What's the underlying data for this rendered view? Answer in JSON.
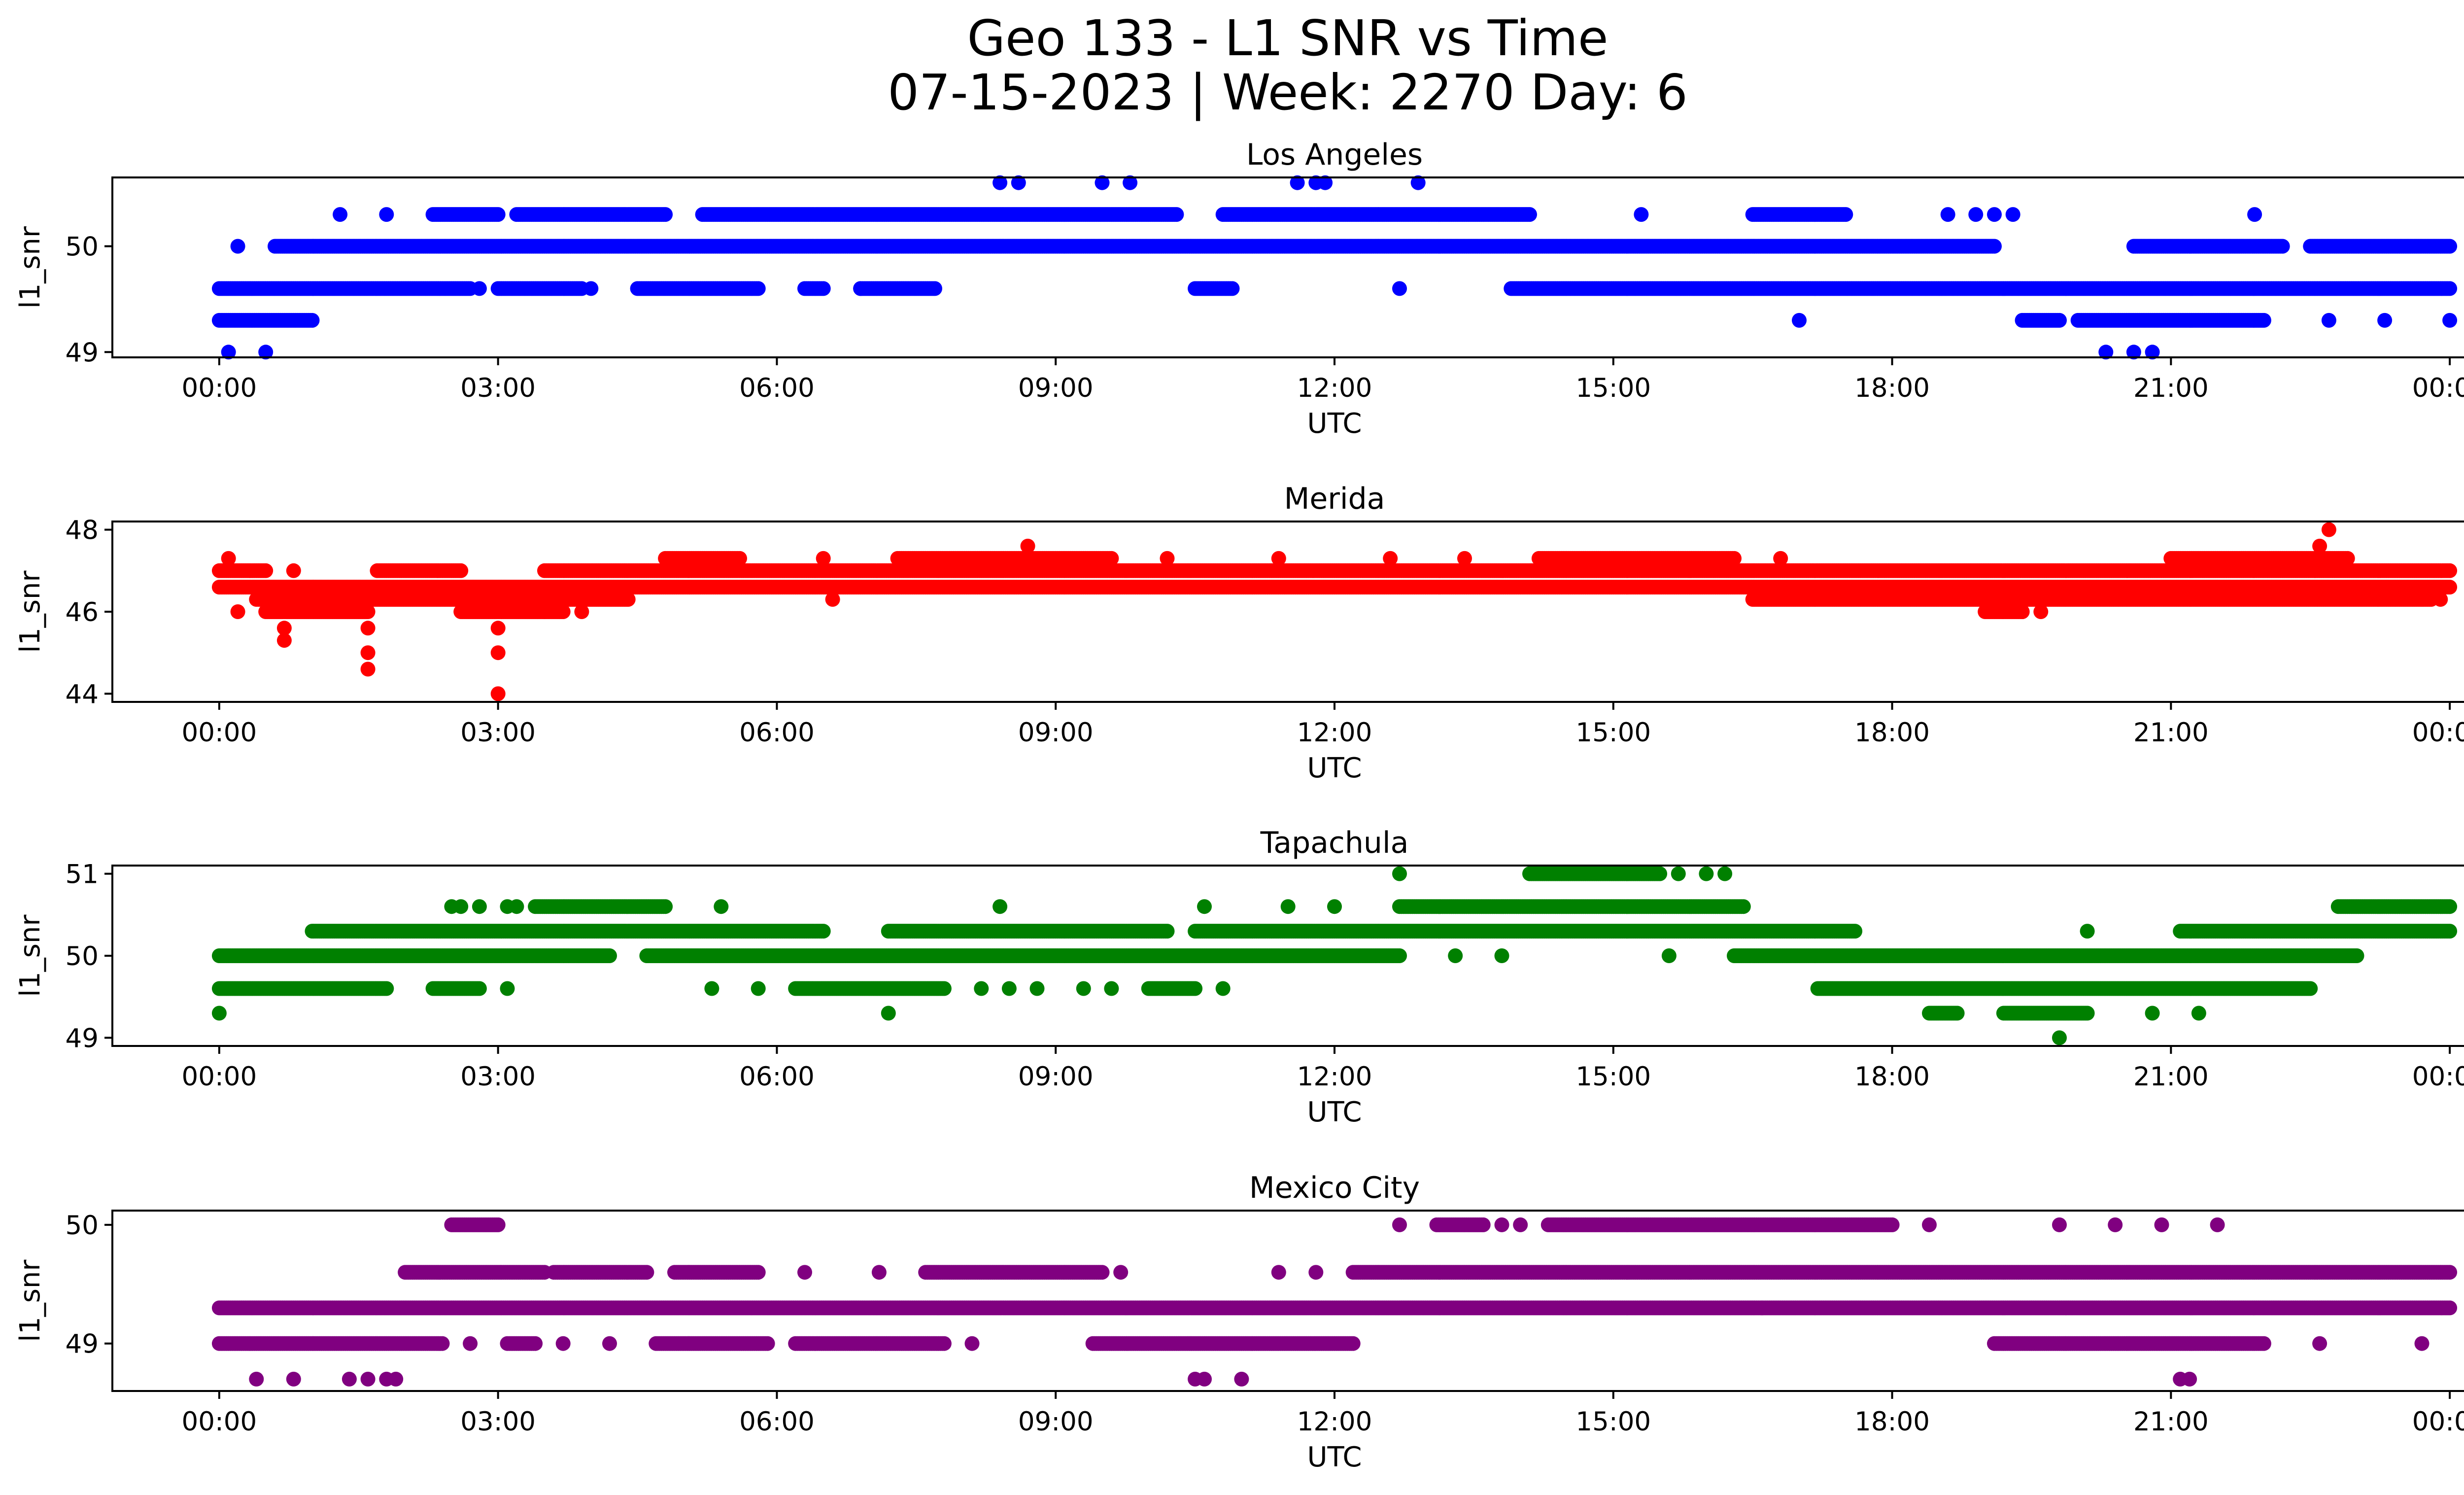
{
  "figure": {
    "title_line1": "Geo 133 - L1 SNR vs Time",
    "title_line2": "07-15-2023 | Week: 2270 Day: 6"
  },
  "chart_data": [
    {
      "type": "scatter",
      "title": "Los Angeles",
      "xlabel": "UTC",
      "ylabel": "l1_snr",
      "color": "#0000ff",
      "xlim_hours": [
        -1.15,
        25.15
      ],
      "ylim": [
        48.95,
        50.65
      ],
      "xticks_hours": [
        0,
        3,
        6,
        9,
        12,
        15,
        18,
        21,
        24
      ],
      "xtick_labels": [
        "00:00",
        "03:00",
        "06:00",
        "09:00",
        "12:00",
        "15:00",
        "18:00",
        "21:00",
        "00:00"
      ],
      "yticks": [
        49,
        50
      ],
      "ytick_labels": [
        "49",
        "50"
      ],
      "bands": [
        {
          "y": 50.0,
          "ranges": [
            [
              0.6,
              19.1
            ],
            [
              20.6,
              22.2
            ],
            [
              22.5,
              24.0
            ]
          ]
        },
        {
          "y": 49.6,
          "ranges": [
            [
              0.0,
              2.7
            ],
            [
              3.0,
              3.9
            ],
            [
              4.5,
              5.8
            ],
            [
              6.3,
              6.5
            ],
            [
              6.9,
              7.7
            ],
            [
              10.5,
              10.9
            ],
            [
              13.9,
              24.0
            ]
          ]
        },
        {
          "y": 49.3,
          "ranges": [
            [
              0.0,
              1.0
            ],
            [
              19.4,
              19.8
            ],
            [
              20.0,
              22.0
            ]
          ]
        },
        {
          "y": 50.3,
          "ranges": [
            [
              2.3,
              3.0
            ],
            [
              3.2,
              4.8
            ],
            [
              5.2,
              10.3
            ],
            [
              10.8,
              14.1
            ],
            [
              16.5,
              17.5
            ]
          ]
        }
      ],
      "points": [
        {
          "x": 0.1,
          "y": 49.0
        },
        {
          "x": 0.5,
          "y": 49.0
        },
        {
          "x": 0.2,
          "y": 50.0
        },
        {
          "x": 1.3,
          "y": 50.3
        },
        {
          "x": 1.8,
          "y": 50.3
        },
        {
          "x": 2.8,
          "y": 49.6
        },
        {
          "x": 4.0,
          "y": 49.6
        },
        {
          "x": 6.9,
          "y": 49.6
        },
        {
          "x": 8.4,
          "y": 50.6
        },
        {
          "x": 8.6,
          "y": 50.6
        },
        {
          "x": 9.5,
          "y": 50.6
        },
        {
          "x": 9.8,
          "y": 50.6
        },
        {
          "x": 11.6,
          "y": 50.6
        },
        {
          "x": 11.8,
          "y": 50.6
        },
        {
          "x": 11.9,
          "y": 50.6
        },
        {
          "x": 12.9,
          "y": 50.6
        },
        {
          "x": 12.7,
          "y": 49.6
        },
        {
          "x": 15.3,
          "y": 50.3
        },
        {
          "x": 17.0,
          "y": 49.3
        },
        {
          "x": 18.6,
          "y": 50.3
        },
        {
          "x": 18.9,
          "y": 50.3
        },
        {
          "x": 19.1,
          "y": 50.3
        },
        {
          "x": 19.3,
          "y": 50.3
        },
        {
          "x": 20.3,
          "y": 49.0
        },
        {
          "x": 20.6,
          "y": 49.0
        },
        {
          "x": 20.8,
          "y": 49.0
        },
        {
          "x": 21.9,
          "y": 50.3
        },
        {
          "x": 22.7,
          "y": 49.3
        },
        {
          "x": 23.3,
          "y": 49.3
        },
        {
          "x": 24.0,
          "y": 49.3
        }
      ]
    },
    {
      "type": "scatter",
      "title": "Merida",
      "xlabel": "UTC",
      "ylabel": "l1_snr",
      "color": "#ff0000",
      "xlim_hours": [
        -1.15,
        25.15
      ],
      "ylim": [
        43.8,
        48.2
      ],
      "xticks_hours": [
        0,
        3,
        6,
        9,
        12,
        15,
        18,
        21,
        24
      ],
      "xtick_labels": [
        "00:00",
        "03:00",
        "06:00",
        "09:00",
        "12:00",
        "15:00",
        "18:00",
        "21:00",
        "00:00"
      ],
      "yticks": [
        44,
        46,
        48
      ],
      "ytick_labels": [
        "44",
        "46",
        "48"
      ],
      "bands": [
        {
          "y": 47.0,
          "ranges": [
            [
              0.0,
              0.5
            ],
            [
              1.7,
              2.6
            ],
            [
              3.5,
              24.0
            ]
          ]
        },
        {
          "y": 46.6,
          "ranges": [
            [
              0.0,
              24.0
            ]
          ]
        },
        {
          "y": 46.3,
          "ranges": [
            [
              0.4,
              4.4
            ],
            [
              16.5,
              23.8
            ]
          ]
        },
        {
          "y": 46.0,
          "ranges": [
            [
              0.5,
              1.6
            ],
            [
              2.6,
              3.7
            ],
            [
              19.0,
              19.4
            ]
          ]
        },
        {
          "y": 47.3,
          "ranges": [
            [
              4.8,
              5.6
            ],
            [
              7.3,
              9.6
            ],
            [
              14.2,
              16.3
            ],
            [
              21.0,
              22.9
            ]
          ]
        }
      ],
      "points": [
        {
          "x": 0.1,
          "y": 47.3
        },
        {
          "x": 0.2,
          "y": 46.0
        },
        {
          "x": 0.8,
          "y": 47.0
        },
        {
          "x": 0.7,
          "y": 45.6
        },
        {
          "x": 0.7,
          "y": 45.3
        },
        {
          "x": 1.6,
          "y": 45.6
        },
        {
          "x": 1.6,
          "y": 45.0
        },
        {
          "x": 1.6,
          "y": 44.6
        },
        {
          "x": 3.0,
          "y": 45.6
        },
        {
          "x": 3.0,
          "y": 45.0
        },
        {
          "x": 3.0,
          "y": 44.0
        },
        {
          "x": 3.5,
          "y": 46.0
        },
        {
          "x": 3.9,
          "y": 46.0
        },
        {
          "x": 6.6,
          "y": 46.3
        },
        {
          "x": 6.5,
          "y": 47.3
        },
        {
          "x": 8.7,
          "y": 47.6
        },
        {
          "x": 10.2,
          "y": 47.3
        },
        {
          "x": 11.4,
          "y": 47.3
        },
        {
          "x": 12.6,
          "y": 47.3
        },
        {
          "x": 13.4,
          "y": 47.3
        },
        {
          "x": 16.8,
          "y": 47.3
        },
        {
          "x": 19.4,
          "y": 46.0
        },
        {
          "x": 19.6,
          "y": 46.0
        },
        {
          "x": 22.6,
          "y": 47.6
        },
        {
          "x": 22.7,
          "y": 48.0
        },
        {
          "x": 23.7,
          "y": 46.3
        },
        {
          "x": 23.9,
          "y": 46.3
        }
      ]
    },
    {
      "type": "scatter",
      "title": "Tapachula",
      "xlabel": "UTC",
      "ylabel": "l1_snr",
      "color": "#008000",
      "xlim_hours": [
        -1.15,
        25.15
      ],
      "ylim": [
        48.9,
        51.1
      ],
      "xticks_hours": [
        0,
        3,
        6,
        9,
        12,
        15,
        18,
        21,
        24
      ],
      "xtick_labels": [
        "00:00",
        "03:00",
        "06:00",
        "09:00",
        "12:00",
        "15:00",
        "18:00",
        "21:00",
        "00:00"
      ],
      "yticks": [
        49,
        50,
        51
      ],
      "ytick_labels": [
        "49",
        "50",
        "51"
      ],
      "bands": [
        {
          "y": 50.0,
          "ranges": [
            [
              0.0,
              4.2
            ],
            [
              4.6,
              12.7
            ],
            [
              16.3,
              23.0
            ]
          ]
        },
        {
          "y": 50.3,
          "ranges": [
            [
              1.0,
              6.5
            ],
            [
              7.2,
              10.2
            ],
            [
              10.5,
              17.6
            ],
            [
              21.1,
              24.0
            ]
          ]
        },
        {
          "y": 49.6,
          "ranges": [
            [
              0.0,
              1.8
            ],
            [
              2.3,
              2.8
            ],
            [
              6.2,
              7.8
            ],
            [
              10.0,
              10.5
            ],
            [
              17.2,
              22.5
            ]
          ]
        },
        {
          "y": 50.6,
          "ranges": [
            [
              3.4,
              4.8
            ],
            [
              12.7,
              16.4
            ],
            [
              22.8,
              24.0
            ]
          ]
        },
        {
          "y": 51.0,
          "ranges": [
            [
              14.1,
              15.5
            ]
          ]
        },
        {
          "y": 49.3,
          "ranges": [
            [
              18.4,
              18.7
            ],
            [
              19.2,
              20.1
            ]
          ]
        }
      ],
      "points": [
        {
          "x": 0.0,
          "y": 49.3
        },
        {
          "x": 2.5,
          "y": 50.6
        },
        {
          "x": 2.6,
          "y": 50.6
        },
        {
          "x": 2.8,
          "y": 50.6
        },
        {
          "x": 3.1,
          "y": 50.6
        },
        {
          "x": 3.2,
          "y": 50.6
        },
        {
          "x": 3.1,
          "y": 49.6
        },
        {
          "x": 5.4,
          "y": 50.6
        },
        {
          "x": 5.3,
          "y": 49.6
        },
        {
          "x": 5.8,
          "y": 49.6
        },
        {
          "x": 7.2,
          "y": 49.3
        },
        {
          "x": 8.4,
          "y": 50.6
        },
        {
          "x": 8.2,
          "y": 49.6
        },
        {
          "x": 8.5,
          "y": 49.6
        },
        {
          "x": 8.8,
          "y": 49.6
        },
        {
          "x": 9.3,
          "y": 49.6
        },
        {
          "x": 9.6,
          "y": 49.6
        },
        {
          "x": 10.6,
          "y": 50.6
        },
        {
          "x": 10.8,
          "y": 49.6
        },
        {
          "x": 11.5,
          "y": 50.6
        },
        {
          "x": 12.0,
          "y": 50.6
        },
        {
          "x": 12.7,
          "y": 51.0
        },
        {
          "x": 13.3,
          "y": 50.0
        },
        {
          "x": 13.8,
          "y": 50.0
        },
        {
          "x": 15.7,
          "y": 51.0
        },
        {
          "x": 16.0,
          "y": 51.0
        },
        {
          "x": 16.2,
          "y": 51.0
        },
        {
          "x": 15.6,
          "y": 50.0
        },
        {
          "x": 19.8,
          "y": 49.0
        },
        {
          "x": 20.1,
          "y": 50.3
        },
        {
          "x": 20.8,
          "y": 49.3
        },
        {
          "x": 21.3,
          "y": 49.3
        }
      ]
    },
    {
      "type": "scatter",
      "title": "Mexico City",
      "xlabel": "UTC",
      "ylabel": "l1_snr",
      "color": "#800080",
      "xlim_hours": [
        -1.15,
        25.15
      ],
      "ylim": [
        48.6,
        50.12
      ],
      "xticks_hours": [
        0,
        3,
        6,
        9,
        12,
        15,
        18,
        21,
        24
      ],
      "xtick_labels": [
        "00:00",
        "03:00",
        "06:00",
        "09:00",
        "12:00",
        "15:00",
        "18:00",
        "21:00",
        "00:00"
      ],
      "yticks": [
        49,
        50
      ],
      "ytick_labels": [
        "49",
        "50"
      ],
      "bands": [
        {
          "y": 49.3,
          "ranges": [
            [
              0.0,
              24.0
            ]
          ]
        },
        {
          "y": 49.0,
          "ranges": [
            [
              0.0,
              2.4
            ],
            [
              3.1,
              3.4
            ],
            [
              4.7,
              5.9
            ],
            [
              6.2,
              7.8
            ],
            [
              9.4,
              12.2
            ],
            [
              19.1,
              22.0
            ]
          ]
        },
        {
          "y": 49.6,
          "ranges": [
            [
              2.0,
              3.5
            ],
            [
              3.6,
              4.6
            ],
            [
              4.9,
              5.8
            ],
            [
              7.6,
              9.5
            ],
            [
              12.2,
              24.0
            ]
          ]
        },
        {
          "y": 50.0,
          "ranges": [
            [
              2.5,
              3.0
            ],
            [
              13.1,
              13.6
            ],
            [
              14.3,
              18.0
            ]
          ]
        }
      ],
      "points": [
        {
          "x": 0.4,
          "y": 48.7
        },
        {
          "x": 0.8,
          "y": 48.7
        },
        {
          "x": 1.4,
          "y": 48.7
        },
        {
          "x": 1.6,
          "y": 48.7
        },
        {
          "x": 1.8,
          "y": 48.7
        },
        {
          "x": 1.9,
          "y": 48.7
        },
        {
          "x": 2.7,
          "y": 49.0
        },
        {
          "x": 3.7,
          "y": 49.0
        },
        {
          "x": 4.2,
          "y": 49.0
        },
        {
          "x": 6.3,
          "y": 49.6
        },
        {
          "x": 7.1,
          "y": 49.6
        },
        {
          "x": 8.1,
          "y": 49.0
        },
        {
          "x": 9.7,
          "y": 49.6
        },
        {
          "x": 10.5,
          "y": 48.7
        },
        {
          "x": 10.6,
          "y": 48.7
        },
        {
          "x": 11.0,
          "y": 48.7
        },
        {
          "x": 11.4,
          "y": 49.6
        },
        {
          "x": 11.8,
          "y": 49.6
        },
        {
          "x": 12.7,
          "y": 50.0
        },
        {
          "x": 13.8,
          "y": 50.0
        },
        {
          "x": 14.0,
          "y": 50.0
        },
        {
          "x": 16.6,
          "y": 49.3
        },
        {
          "x": 18.4,
          "y": 50.0
        },
        {
          "x": 19.8,
          "y": 50.0
        },
        {
          "x": 20.4,
          "y": 50.0
        },
        {
          "x": 20.9,
          "y": 50.0
        },
        {
          "x": 21.5,
          "y": 50.0
        },
        {
          "x": 21.1,
          "y": 48.7
        },
        {
          "x": 21.2,
          "y": 48.7
        },
        {
          "x": 22.6,
          "y": 49.0
        },
        {
          "x": 23.7,
          "y": 49.0
        }
      ]
    }
  ]
}
